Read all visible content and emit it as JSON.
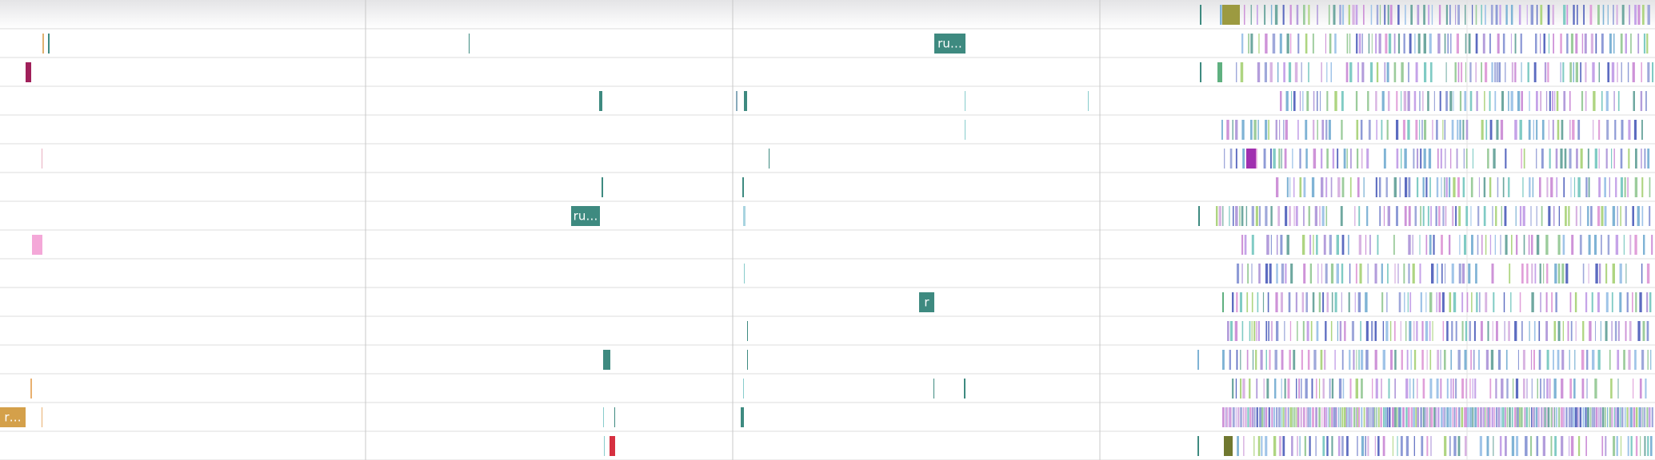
{
  "slices": [
    {
      "label": "ru…"
    },
    {
      "label": "ru…"
    },
    {
      "label": "r"
    },
    {
      "label": "r…"
    }
  ]
}
